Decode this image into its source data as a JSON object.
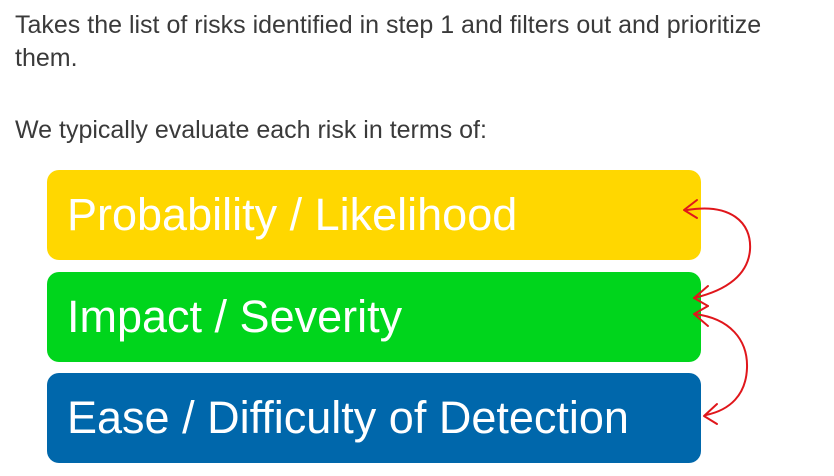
{
  "intro_text": "Takes the list of risks identified in step 1 and filters out and prioritize them.",
  "lead_text": "We typically evaluate each risk in terms of:",
  "criteria": [
    {
      "label": "Probability / Likelihood",
      "color": "#ffd700"
    },
    {
      "label": "Impact / Severity",
      "color": "#00d51c"
    },
    {
      "label": "Ease / Difficulty of Detection",
      "color": "#0067ab"
    }
  ],
  "annotation_color": "#e0161b"
}
